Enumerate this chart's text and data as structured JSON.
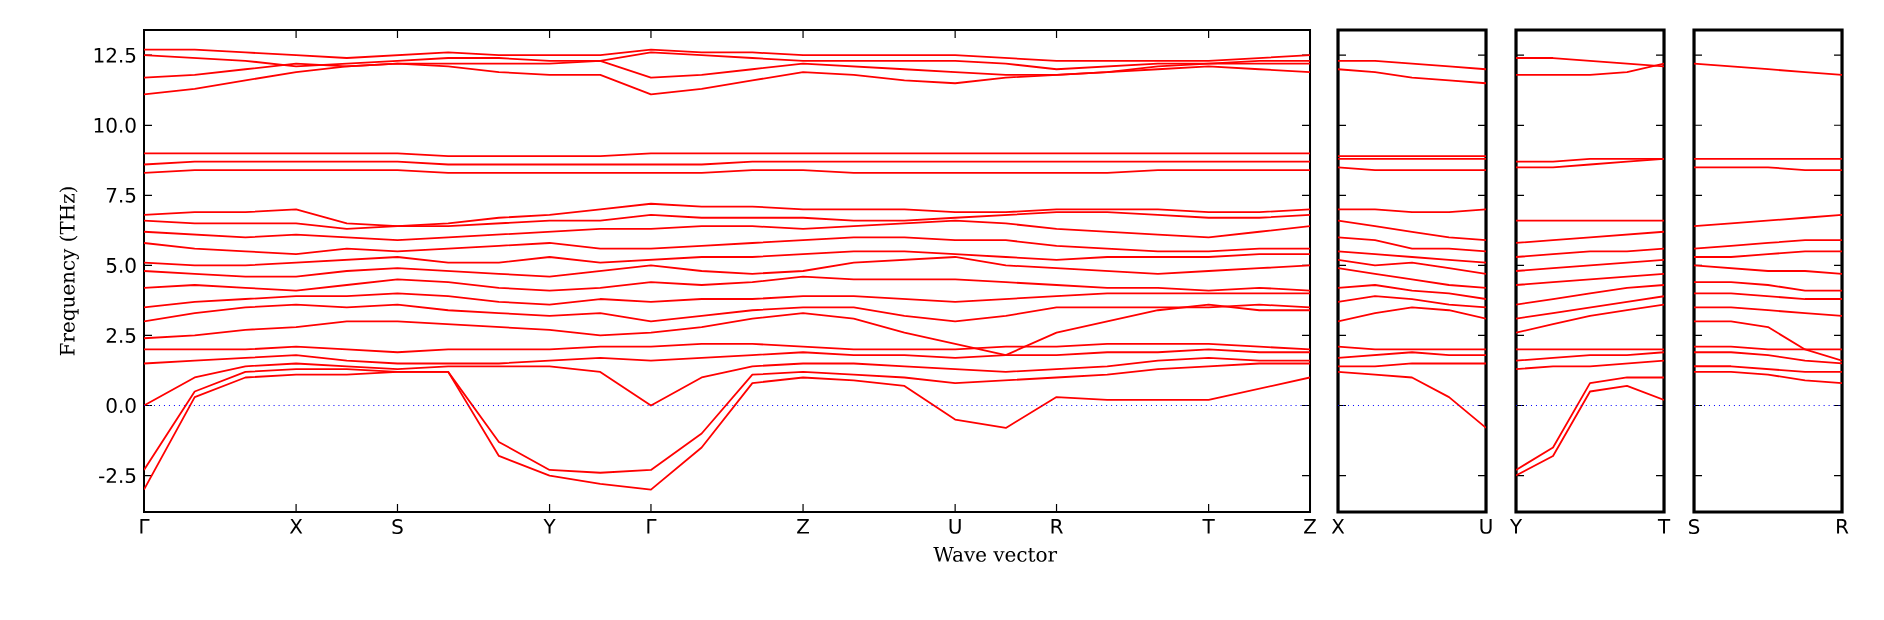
{
  "chart_data": [
    {
      "type": "line",
      "xlabel": "Wave vector",
      "ylabel": "Frequency (THz)",
      "ylim": [
        -3.8,
        13.4
      ],
      "yticks": [
        -2.5,
        {
          "value": 0,
          "label": "0.0"
        },
        2.5,
        {
          "value": 5,
          "label": "5.0"
        },
        7.5,
        {
          "value": 10,
          "label": "10.0"
        },
        12.5
      ],
      "categories": [
        "Γ",
        null,
        null,
        "X",
        null,
        "S",
        null,
        null,
        "Y",
        null,
        "Γ",
        null,
        null,
        "Z",
        null,
        null,
        "U",
        null,
        "R",
        null,
        null,
        "T",
        null,
        "Z"
      ],
      "ref_lines": [
        {
          "axis": "y",
          "value": 0,
          "color": "#0000ff",
          "line_style": "dotted"
        }
      ],
      "series": [
        {
          "color": "#ff0000",
          "values": [
            -3.0,
            0.3,
            1.0,
            1.1,
            1.1,
            1.2,
            1.2,
            -1.8,
            -2.5,
            -2.8,
            -3.0,
            -1.5,
            0.8,
            1.0,
            0.9,
            0.7,
            -0.5,
            -0.8,
            0.3,
            0.2,
            0.2,
            0.2,
            0.6,
            1.0
          ]
        },
        {
          "color": "#ff0000",
          "values": [
            -2.3,
            0.5,
            1.2,
            1.3,
            1.3,
            1.2,
            1.2,
            -1.3,
            -2.3,
            -2.4,
            -2.3,
            -1.0,
            1.1,
            1.2,
            1.1,
            1.0,
            0.8,
            0.9,
            1.0,
            1.1,
            1.3,
            1.4,
            1.5,
            1.5
          ]
        },
        {
          "color": "#ff0000",
          "values": [
            0.0,
            1.0,
            1.4,
            1.5,
            1.4,
            1.3,
            1.4,
            1.4,
            1.4,
            1.2,
            0.0,
            1.0,
            1.4,
            1.5,
            1.5,
            1.4,
            1.3,
            1.2,
            1.3,
            1.4,
            1.6,
            1.7,
            1.6,
            1.6
          ]
        },
        {
          "color": "#ff0000",
          "values": [
            1.5,
            1.6,
            1.7,
            1.8,
            1.6,
            1.5,
            1.5,
            1.5,
            1.6,
            1.7,
            1.6,
            1.7,
            1.8,
            1.9,
            1.8,
            1.8,
            1.7,
            1.8,
            1.8,
            1.9,
            1.9,
            2.0,
            1.9,
            1.9
          ]
        },
        {
          "color": "#ff0000",
          "values": [
            2.0,
            2.0,
            2.0,
            2.1,
            2.0,
            1.9,
            2.0,
            2.0,
            2.0,
            2.1,
            2.1,
            2.2,
            2.2,
            2.1,
            2.0,
            2.0,
            2.0,
            2.1,
            2.1,
            2.2,
            2.2,
            2.2,
            2.1,
            2.0
          ]
        },
        {
          "color": "#ff0000",
          "values": [
            2.4,
            2.5,
            2.7,
            2.8,
            3.0,
            3.0,
            2.9,
            2.8,
            2.7,
            2.5,
            2.6,
            2.8,
            3.1,
            3.3,
            3.1,
            2.6,
            2.2,
            1.8,
            2.6,
            3.0,
            3.4,
            3.6,
            3.4,
            3.4
          ]
        },
        {
          "color": "#ff0000",
          "values": [
            3.0,
            3.3,
            3.5,
            3.6,
            3.5,
            3.6,
            3.4,
            3.3,
            3.2,
            3.3,
            3.0,
            3.2,
            3.4,
            3.5,
            3.5,
            3.2,
            3.0,
            3.2,
            3.5,
            3.5,
            3.5,
            3.5,
            3.6,
            3.5
          ]
        },
        {
          "color": "#ff0000",
          "values": [
            3.5,
            3.7,
            3.8,
            3.9,
            3.9,
            4.0,
            3.9,
            3.7,
            3.6,
            3.8,
            3.7,
            3.8,
            3.8,
            3.9,
            3.9,
            3.8,
            3.7,
            3.8,
            3.9,
            4.0,
            4.0,
            4.0,
            4.0,
            4.0
          ]
        },
        {
          "color": "#ff0000",
          "values": [
            4.2,
            4.3,
            4.2,
            4.1,
            4.3,
            4.5,
            4.4,
            4.2,
            4.1,
            4.2,
            4.4,
            4.3,
            4.4,
            4.6,
            4.5,
            4.5,
            4.5,
            4.4,
            4.3,
            4.2,
            4.2,
            4.1,
            4.2,
            4.1
          ]
        },
        {
          "color": "#ff0000",
          "values": [
            4.8,
            4.7,
            4.6,
            4.6,
            4.8,
            4.9,
            4.8,
            4.7,
            4.6,
            4.8,
            5.0,
            4.8,
            4.7,
            4.8,
            5.1,
            5.2,
            5.3,
            5.0,
            4.9,
            4.8,
            4.7,
            4.8,
            4.9,
            5.0
          ]
        },
        {
          "color": "#ff0000",
          "values": [
            5.1,
            5.0,
            5.0,
            5.1,
            5.2,
            5.3,
            5.1,
            5.1,
            5.3,
            5.1,
            5.2,
            5.3,
            5.3,
            5.4,
            5.5,
            5.5,
            5.4,
            5.3,
            5.2,
            5.3,
            5.3,
            5.3,
            5.4,
            5.4
          ]
        },
        {
          "color": "#ff0000",
          "values": [
            5.8,
            5.6,
            5.5,
            5.4,
            5.6,
            5.5,
            5.6,
            5.7,
            5.8,
            5.6,
            5.6,
            5.7,
            5.8,
            5.9,
            6.0,
            6.0,
            5.9,
            5.9,
            5.7,
            5.6,
            5.5,
            5.5,
            5.6,
            5.6
          ]
        },
        {
          "color": "#ff0000",
          "values": [
            6.2,
            6.1,
            6.0,
            6.1,
            6.0,
            5.9,
            6.0,
            6.1,
            6.2,
            6.3,
            6.3,
            6.4,
            6.4,
            6.3,
            6.4,
            6.5,
            6.6,
            6.5,
            6.3,
            6.2,
            6.1,
            6.0,
            6.2,
            6.4
          ]
        },
        {
          "color": "#ff0000",
          "values": [
            6.6,
            6.5,
            6.5,
            6.5,
            6.3,
            6.4,
            6.4,
            6.5,
            6.6,
            6.6,
            6.8,
            6.7,
            6.7,
            6.7,
            6.6,
            6.6,
            6.7,
            6.8,
            6.9,
            6.9,
            6.8,
            6.7,
            6.7,
            6.8
          ]
        },
        {
          "color": "#ff0000",
          "values": [
            6.8,
            6.9,
            6.9,
            7.0,
            6.5,
            6.4,
            6.5,
            6.7,
            6.8,
            7.0,
            7.2,
            7.1,
            7.1,
            7.0,
            7.0,
            7.0,
            6.9,
            6.9,
            7.0,
            7.0,
            7.0,
            6.9,
            6.9,
            7.0
          ]
        },
        {
          "color": "#ff0000",
          "values": [
            8.3,
            8.4,
            8.4,
            8.4,
            8.4,
            8.4,
            8.3,
            8.3,
            8.3,
            8.3,
            8.3,
            8.3,
            8.4,
            8.4,
            8.3,
            8.3,
            8.3,
            8.3,
            8.3,
            8.3,
            8.4,
            8.4,
            8.4,
            8.4
          ]
        },
        {
          "color": "#ff0000",
          "values": [
            8.6,
            8.7,
            8.7,
            8.7,
            8.7,
            8.7,
            8.6,
            8.6,
            8.6,
            8.6,
            8.6,
            8.6,
            8.7,
            8.7,
            8.7,
            8.7,
            8.7,
            8.7,
            8.7,
            8.7,
            8.7,
            8.7,
            8.7,
            8.7
          ]
        },
        {
          "color": "#ff0000",
          "values": [
            9.0,
            9.0,
            9.0,
            9.0,
            9.0,
            9.0,
            8.9,
            8.9,
            8.9,
            8.9,
            9.0,
            9.0,
            9.0,
            9.0,
            9.0,
            9.0,
            9.0,
            9.0,
            9.0,
            9.0,
            9.0,
            9.0,
            9.0,
            9.0
          ]
        },
        {
          "color": "#ff0000",
          "values": [
            11.1,
            11.3,
            11.6,
            11.9,
            12.1,
            12.2,
            12.1,
            11.9,
            11.8,
            11.8,
            11.1,
            11.3,
            11.6,
            11.9,
            11.8,
            11.6,
            11.5,
            11.7,
            11.8,
            11.9,
            12.0,
            12.1,
            12.0,
            11.9
          ]
        },
        {
          "color": "#ff0000",
          "values": [
            11.7,
            11.8,
            12.0,
            12.2,
            12.1,
            12.2,
            12.2,
            12.2,
            12.2,
            12.3,
            11.7,
            11.8,
            12.0,
            12.2,
            12.1,
            12.0,
            11.9,
            11.8,
            11.8,
            11.9,
            12.1,
            12.2,
            12.2,
            12.2
          ]
        },
        {
          "color": "#ff0000",
          "values": [
            12.5,
            12.4,
            12.3,
            12.1,
            12.2,
            12.3,
            12.4,
            12.4,
            12.3,
            12.3,
            12.6,
            12.5,
            12.4,
            12.3,
            12.3,
            12.3,
            12.3,
            12.2,
            12.0,
            12.1,
            12.2,
            12.2,
            12.3,
            12.3
          ]
        },
        {
          "color": "#ff0000",
          "values": [
            12.7,
            12.7,
            12.6,
            12.5,
            12.4,
            12.5,
            12.6,
            12.5,
            12.5,
            12.5,
            12.7,
            12.6,
            12.6,
            12.5,
            12.5,
            12.5,
            12.5,
            12.4,
            12.3,
            12.3,
            12.3,
            12.3,
            12.4,
            12.5
          ]
        }
      ]
    },
    {
      "type": "line",
      "ylim": [
        -3.8,
        13.4
      ],
      "yticks": [
        -2.5,
        0,
        2.5,
        5,
        7.5,
        10,
        12.5
      ],
      "tick_labels": "x",
      "categories": [
        "X",
        null,
        null,
        null,
        "U"
      ],
      "ref_lines": [
        {
          "axis": "y",
          "value": 0,
          "color": "#0000ff",
          "line_style": "dotted"
        }
      ],
      "series": [
        {
          "color": "#ff0000",
          "values": [
            1.2,
            1.1,
            1.0,
            0.3,
            -0.8
          ]
        },
        {
          "color": "#ff0000",
          "values": [
            1.4,
            1.4,
            1.5,
            1.5,
            1.5
          ]
        },
        {
          "color": "#ff0000",
          "values": [
            1.7,
            1.8,
            1.9,
            1.8,
            1.8
          ]
        },
        {
          "color": "#ff0000",
          "values": [
            2.1,
            2.0,
            2.0,
            2.0,
            2.0
          ]
        },
        {
          "color": "#ff0000",
          "values": [
            3.0,
            3.3,
            3.5,
            3.4,
            3.1
          ]
        },
        {
          "color": "#ff0000",
          "values": [
            3.7,
            3.9,
            3.8,
            3.6,
            3.5
          ]
        },
        {
          "color": "#ff0000",
          "values": [
            4.2,
            4.3,
            4.1,
            4.0,
            3.8
          ]
        },
        {
          "color": "#ff0000",
          "values": [
            4.9,
            4.7,
            4.5,
            4.3,
            4.2
          ]
        },
        {
          "color": "#ff0000",
          "values": [
            5.2,
            5.0,
            5.1,
            4.9,
            4.7
          ]
        },
        {
          "color": "#ff0000",
          "values": [
            5.5,
            5.4,
            5.3,
            5.2,
            5.1
          ]
        },
        {
          "color": "#ff0000",
          "values": [
            6.0,
            5.9,
            5.6,
            5.6,
            5.5
          ]
        },
        {
          "color": "#ff0000",
          "values": [
            6.6,
            6.4,
            6.2,
            6.0,
            5.9
          ]
        },
        {
          "color": "#ff0000",
          "values": [
            7.0,
            7.0,
            6.9,
            6.9,
            7.0
          ]
        },
        {
          "color": "#ff0000",
          "values": [
            8.5,
            8.4,
            8.4,
            8.4,
            8.4
          ]
        },
        {
          "color": "#ff0000",
          "values": [
            8.8,
            8.8,
            8.8,
            8.8,
            8.8
          ]
        },
        {
          "color": "#ff0000",
          "values": [
            8.9,
            8.9,
            8.9,
            8.9,
            8.9
          ]
        },
        {
          "color": "#ff0000",
          "values": [
            12.0,
            11.9,
            11.7,
            11.6,
            11.5
          ]
        },
        {
          "color": "#ff0000",
          "values": [
            12.3,
            12.3,
            12.2,
            12.1,
            12.0
          ]
        }
      ]
    },
    {
      "type": "line",
      "ylim": [
        -3.8,
        13.4
      ],
      "yticks": [
        -2.5,
        0,
        2.5,
        5,
        7.5,
        10,
        12.5
      ],
      "tick_labels": "x",
      "categories": [
        "Y",
        null,
        null,
        null,
        "T"
      ],
      "ref_lines": [
        {
          "axis": "y",
          "value": 0,
          "color": "#0000ff",
          "line_style": "dotted"
        }
      ],
      "series": [
        {
          "color": "#ff0000",
          "values": [
            -2.5,
            -1.8,
            0.5,
            0.7,
            0.2
          ]
        },
        {
          "color": "#ff0000",
          "values": [
            -2.3,
            -1.5,
            0.8,
            1.0,
            1.0
          ]
        },
        {
          "color": "#ff0000",
          "values": [
            1.3,
            1.4,
            1.4,
            1.5,
            1.6
          ]
        },
        {
          "color": "#ff0000",
          "values": [
            1.6,
            1.7,
            1.8,
            1.8,
            1.9
          ]
        },
        {
          "color": "#ff0000",
          "values": [
            2.0,
            2.0,
            2.0,
            2.0,
            2.0
          ]
        },
        {
          "color": "#ff0000",
          "values": [
            2.6,
            2.9,
            3.2,
            3.4,
            3.6
          ]
        },
        {
          "color": "#ff0000",
          "values": [
            3.1,
            3.3,
            3.5,
            3.7,
            3.9
          ]
        },
        {
          "color": "#ff0000",
          "values": [
            3.6,
            3.8,
            4.0,
            4.2,
            4.3
          ]
        },
        {
          "color": "#ff0000",
          "values": [
            4.3,
            4.4,
            4.5,
            4.6,
            4.7
          ]
        },
        {
          "color": "#ff0000",
          "values": [
            4.8,
            4.9,
            5.0,
            5.1,
            5.2
          ]
        },
        {
          "color": "#ff0000",
          "values": [
            5.3,
            5.4,
            5.5,
            5.5,
            5.6
          ]
        },
        {
          "color": "#ff0000",
          "values": [
            5.8,
            5.9,
            6.0,
            6.1,
            6.2
          ]
        },
        {
          "color": "#ff0000",
          "values": [
            6.6,
            6.6,
            6.6,
            6.6,
            6.6
          ]
        },
        {
          "color": "#ff0000",
          "values": [
            8.5,
            8.5,
            8.6,
            8.7,
            8.8
          ]
        },
        {
          "color": "#ff0000",
          "values": [
            8.7,
            8.7,
            8.8,
            8.8,
            8.8
          ]
        },
        {
          "color": "#ff0000",
          "values": [
            11.8,
            11.8,
            11.8,
            11.9,
            12.2
          ]
        },
        {
          "color": "#ff0000",
          "values": [
            12.4,
            12.4,
            12.3,
            12.2,
            12.1
          ]
        }
      ]
    },
    {
      "type": "line",
      "ylim": [
        -3.8,
        13.4
      ],
      "yticks": [
        -2.5,
        0,
        2.5,
        5,
        7.5,
        10,
        12.5
      ],
      "tick_labels": "x",
      "categories": [
        "S",
        null,
        null,
        null,
        "R"
      ],
      "ref_lines": [
        {
          "axis": "y",
          "value": 0,
          "color": "#0000ff",
          "line_style": "dotted"
        }
      ],
      "series": [
        {
          "color": "#ff0000",
          "values": [
            1.2,
            1.2,
            1.1,
            0.9,
            0.8
          ]
        },
        {
          "color": "#ff0000",
          "values": [
            1.4,
            1.4,
            1.3,
            1.2,
            1.2
          ]
        },
        {
          "color": "#ff0000",
          "values": [
            1.9,
            1.9,
            1.8,
            1.6,
            1.5
          ]
        },
        {
          "color": "#ff0000",
          "values": [
            2.1,
            2.1,
            2.0,
            2.0,
            2.0
          ]
        },
        {
          "color": "#ff0000",
          "values": [
            3.0,
            3.0,
            2.8,
            2.0,
            1.6
          ]
        },
        {
          "color": "#ff0000",
          "values": [
            3.5,
            3.5,
            3.4,
            3.3,
            3.2
          ]
        },
        {
          "color": "#ff0000",
          "values": [
            4.0,
            4.0,
            3.9,
            3.8,
            3.8
          ]
        },
        {
          "color": "#ff0000",
          "values": [
            4.4,
            4.4,
            4.3,
            4.1,
            4.1
          ]
        },
        {
          "color": "#ff0000",
          "values": [
            5.0,
            4.9,
            4.8,
            4.8,
            4.7
          ]
        },
        {
          "color": "#ff0000",
          "values": [
            5.3,
            5.3,
            5.4,
            5.5,
            5.5
          ]
        },
        {
          "color": "#ff0000",
          "values": [
            5.6,
            5.7,
            5.8,
            5.9,
            5.9
          ]
        },
        {
          "color": "#ff0000",
          "values": [
            6.4,
            6.5,
            6.6,
            6.7,
            6.8
          ]
        },
        {
          "color": "#ff0000",
          "values": [
            8.5,
            8.5,
            8.5,
            8.4,
            8.4
          ]
        },
        {
          "color": "#ff0000",
          "values": [
            8.8,
            8.8,
            8.8,
            8.8,
            8.8
          ]
        },
        {
          "color": "#ff0000",
          "values": [
            12.2,
            12.1,
            12.0,
            11.9,
            11.8
          ]
        }
      ]
    }
  ]
}
